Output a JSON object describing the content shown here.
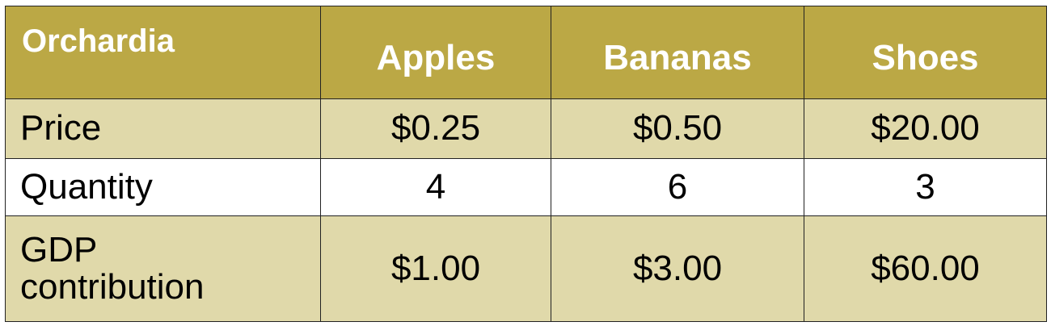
{
  "table": {
    "corner_label": "Orchardia",
    "columns": [
      "Apples",
      "Bananas",
      "Shoes"
    ],
    "rows": [
      {
        "label": "Price",
        "values": [
          "$0.25",
          "$0.50",
          "$20.00"
        ]
      },
      {
        "label": "Quantity",
        "values": [
          "4",
          "6",
          "3"
        ]
      },
      {
        "label": "GDP\ncontribution",
        "values": [
          "$1.00",
          "$3.00",
          "$60.00"
        ]
      }
    ]
  },
  "colors": {
    "header_bg": "#bba845",
    "header_text": "#ffffff",
    "shaded_row_bg": "#e0d9aa",
    "plain_row_bg": "#ffffff"
  }
}
